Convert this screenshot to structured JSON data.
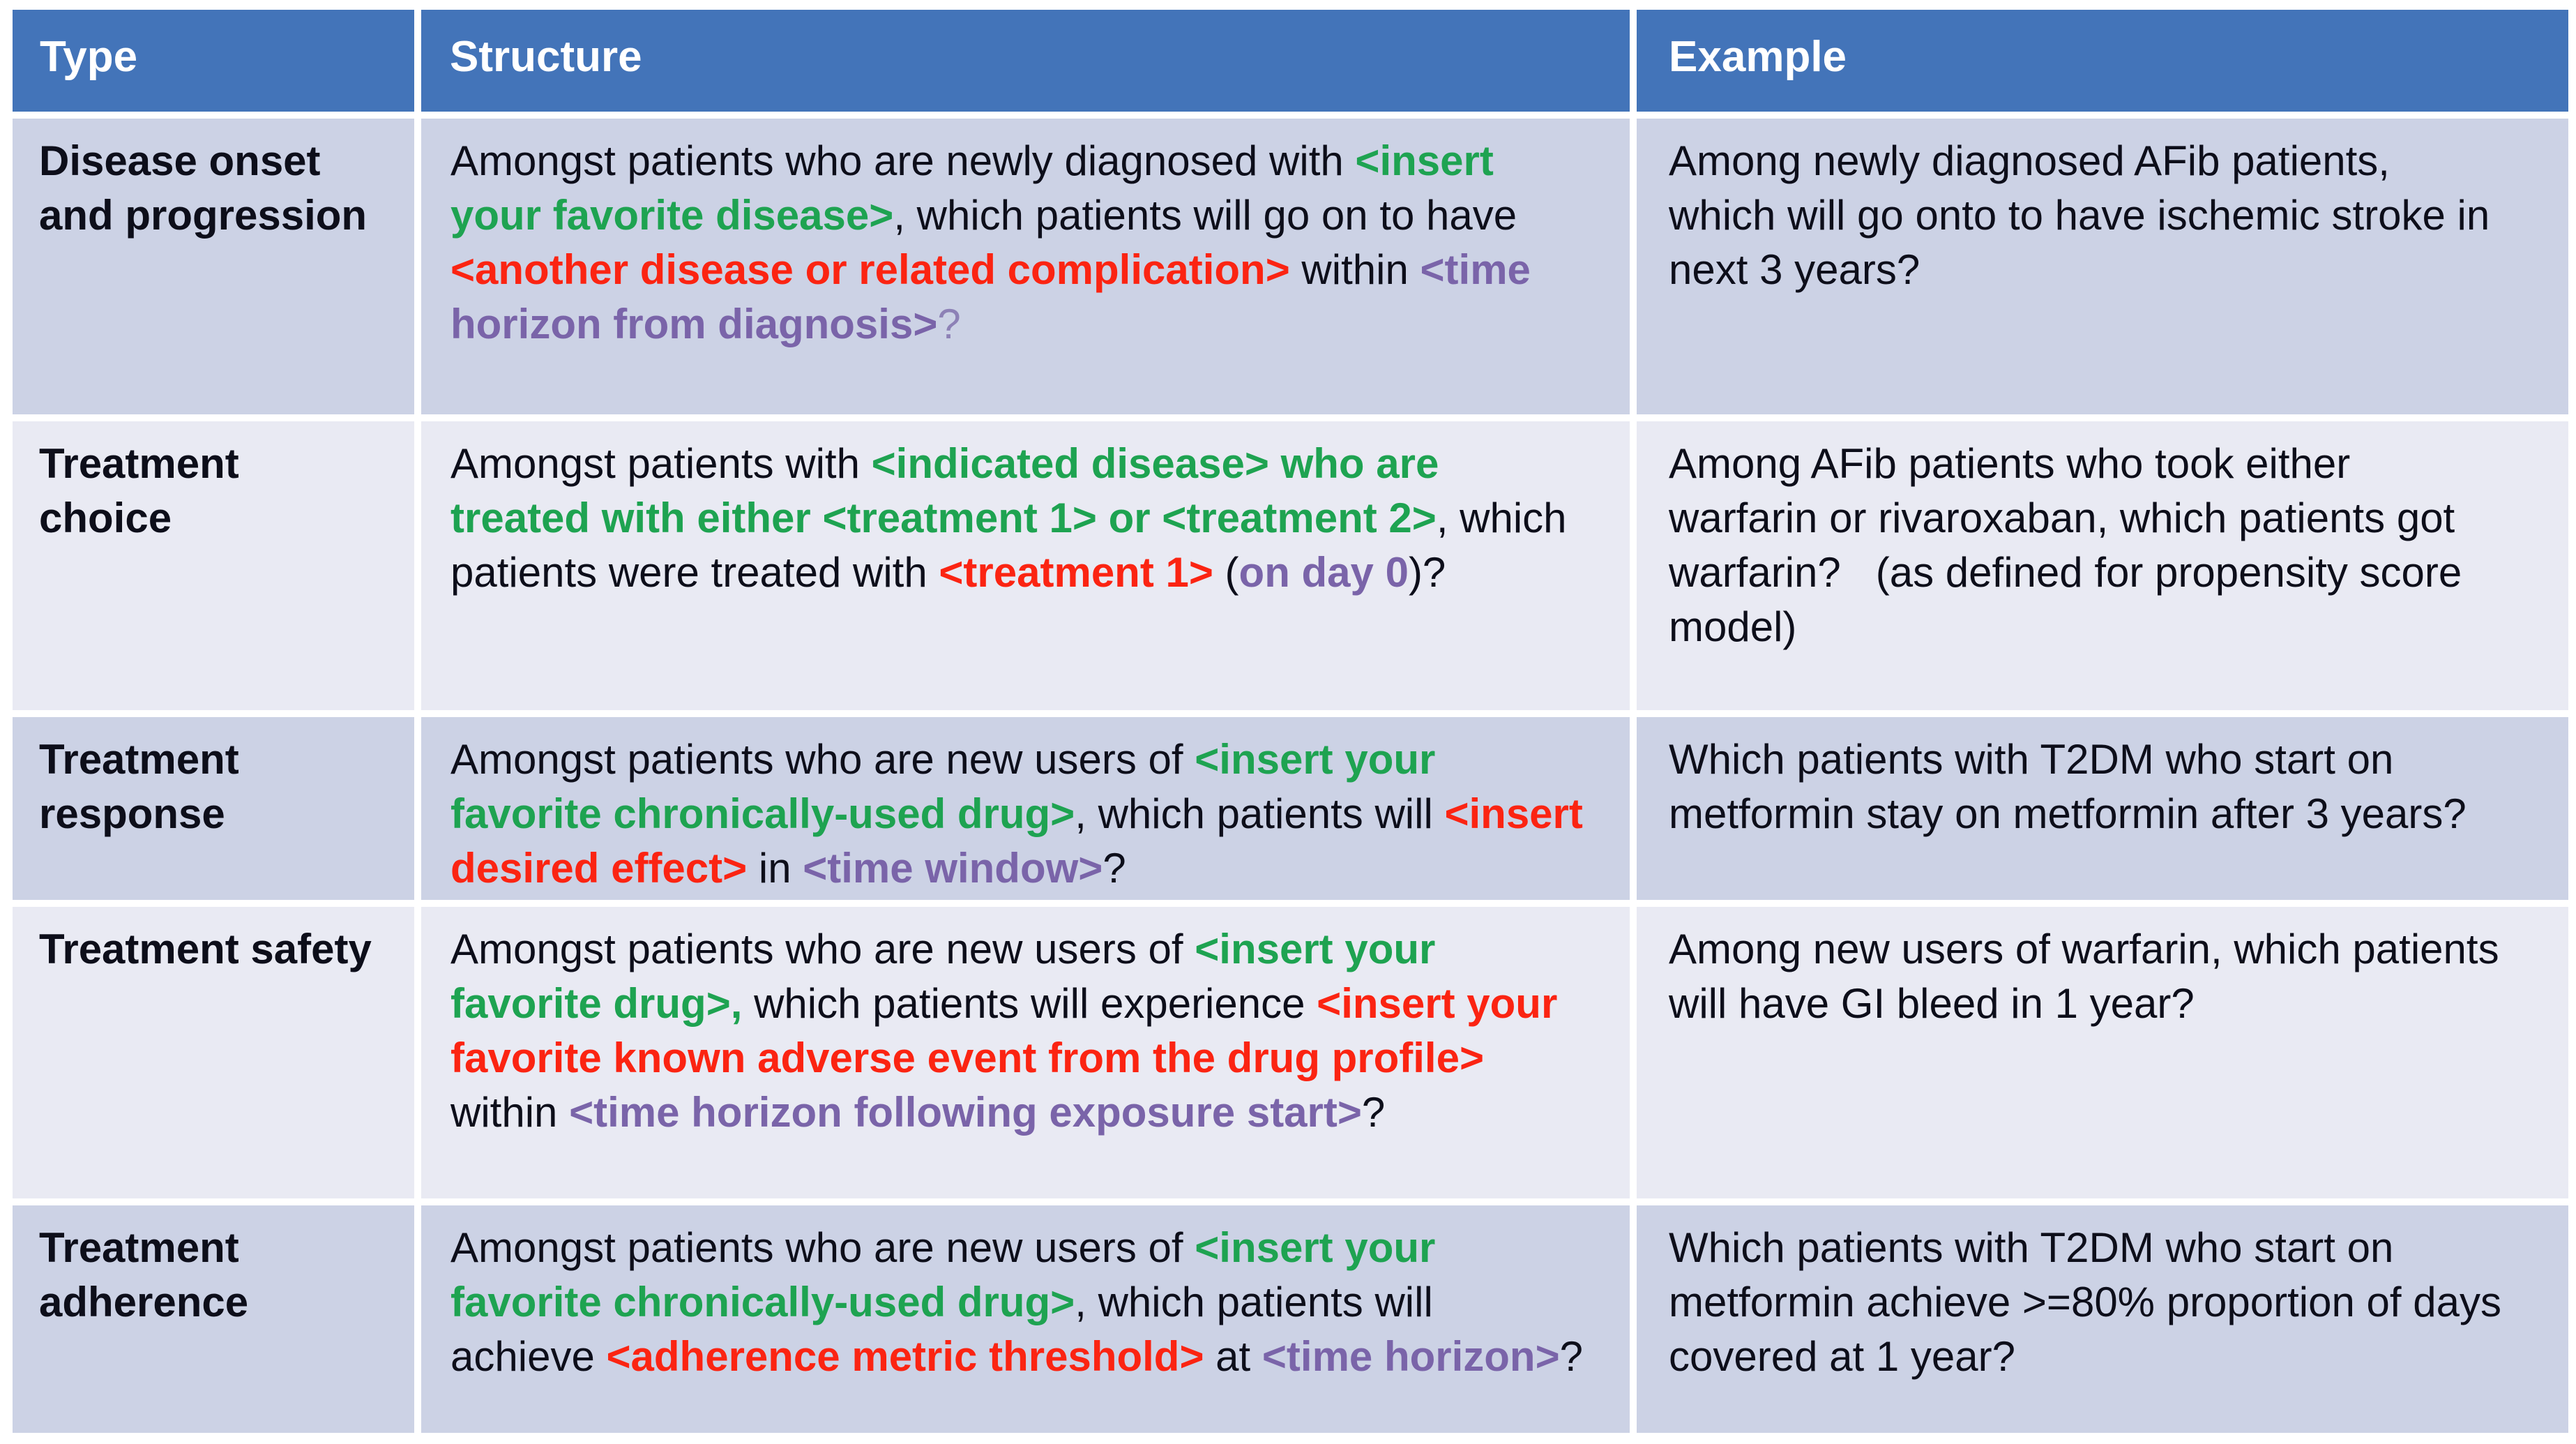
{
  "theme": {
    "canvasBg": "#ffffff",
    "headerBg": "#4374b9",
    "headerText": "#ffffff",
    "rowBandDark": "#ccd2e5",
    "rowBandLight": "#e9eaf3"
  },
  "palette": {
    "black": {
      "color": "#0d0e1a",
      "bold": false
    },
    "green": {
      "color": "#1ea351",
      "bold": true
    },
    "red": {
      "color": "#fb2412",
      "bold": true
    },
    "purple": {
      "color": "#7a64a9",
      "bold": true
    },
    "purpleLight": {
      "color": "#8d81b6",
      "bold": false
    }
  },
  "table": {
    "columns": [
      {
        "label": "Type"
      },
      {
        "label": "Structure"
      },
      {
        "label": "Example"
      }
    ],
    "rows": [
      {
        "band": "dark",
        "type": "Disease onset and progression",
        "structure": [
          {
            "t": "Amongst patients who are newly diagnosed with ",
            "c": "black"
          },
          {
            "t": "<insert your favorite disease>",
            "c": "green"
          },
          {
            "t": ", which patients will go on to have ",
            "c": "black"
          },
          {
            "t": "<another disease or related complication>",
            "c": "red"
          },
          {
            "t": " within ",
            "c": "black"
          },
          {
            "t": "<time horizon from diagnosis>",
            "c": "purple"
          },
          {
            "t": "?",
            "c": "purpleLight"
          }
        ],
        "example": "Among newly diagnosed AFib patients, which will go onto to have ischemic stroke in next 3 years?"
      },
      {
        "band": "light",
        "type": "Treatment choice",
        "structure": [
          {
            "t": "Amongst patients with ",
            "c": "black"
          },
          {
            "t": "<indicated disease> who are treated with either <treatment 1> or <treatment 2>",
            "c": "green"
          },
          {
            "t": ", which patients were treated with ",
            "c": "black"
          },
          {
            "t": "<treatment 1>",
            "c": "red"
          },
          {
            "t": " (",
            "c": "black"
          },
          {
            "t": "on day 0",
            "c": "purple"
          },
          {
            "t": ")?",
            "c": "black"
          }
        ],
        "example": "Among AFib patients who took either warfarin or rivaroxaban, which patients got warfarin?   (as defined for propensity score model)"
      },
      {
        "band": "dark",
        "type": "Treatment response",
        "structure": [
          {
            "t": "Amongst patients who are new users of ",
            "c": "black"
          },
          {
            "t": "<insert your favorite chronically-used drug>",
            "c": "green"
          },
          {
            "t": ", which patients will ",
            "c": "black"
          },
          {
            "t": "<insert desired effect>",
            "c": "red"
          },
          {
            "t": " in ",
            "c": "black"
          },
          {
            "t": "<time window>",
            "c": "purple"
          },
          {
            "t": "?",
            "c": "black"
          }
        ],
        "example": "Which patients with T2DM who start on metformin stay on metformin after 3 years?"
      },
      {
        "band": "light",
        "type": "Treatment safety",
        "structure": [
          {
            "t": "Amongst patients who are new users of ",
            "c": "black"
          },
          {
            "t": "<insert your favorite drug>,",
            "c": "green"
          },
          {
            "t": " which patients will experience ",
            "c": "black"
          },
          {
            "t": "<insert your favorite known adverse event from the drug profile>",
            "c": "red"
          },
          {
            "t": " within ",
            "c": "black"
          },
          {
            "t": "<time horizon following exposure start>",
            "c": "purple"
          },
          {
            "t": "?",
            "c": "black"
          }
        ],
        "example": "Among new users of warfarin, which patients will have GI bleed in 1 year?"
      },
      {
        "band": "dark",
        "type": "Treatment adherence",
        "structure": [
          {
            "t": "Amongst patients who are new users of ",
            "c": "black"
          },
          {
            "t": "<insert your favorite chronically-used drug>",
            "c": "green"
          },
          {
            "t": ", which patients will achieve ",
            "c": "black"
          },
          {
            "t": "<adherence metric threshold>",
            "c": "red"
          },
          {
            "t": " at ",
            "c": "black"
          },
          {
            "t": "<time horizon>",
            "c": "purple"
          },
          {
            "t": "?",
            "c": "black"
          }
        ],
        "example": "Which patients with T2DM who start on metformin achieve >=80% proportion of days covered at 1 year?"
      }
    ]
  }
}
